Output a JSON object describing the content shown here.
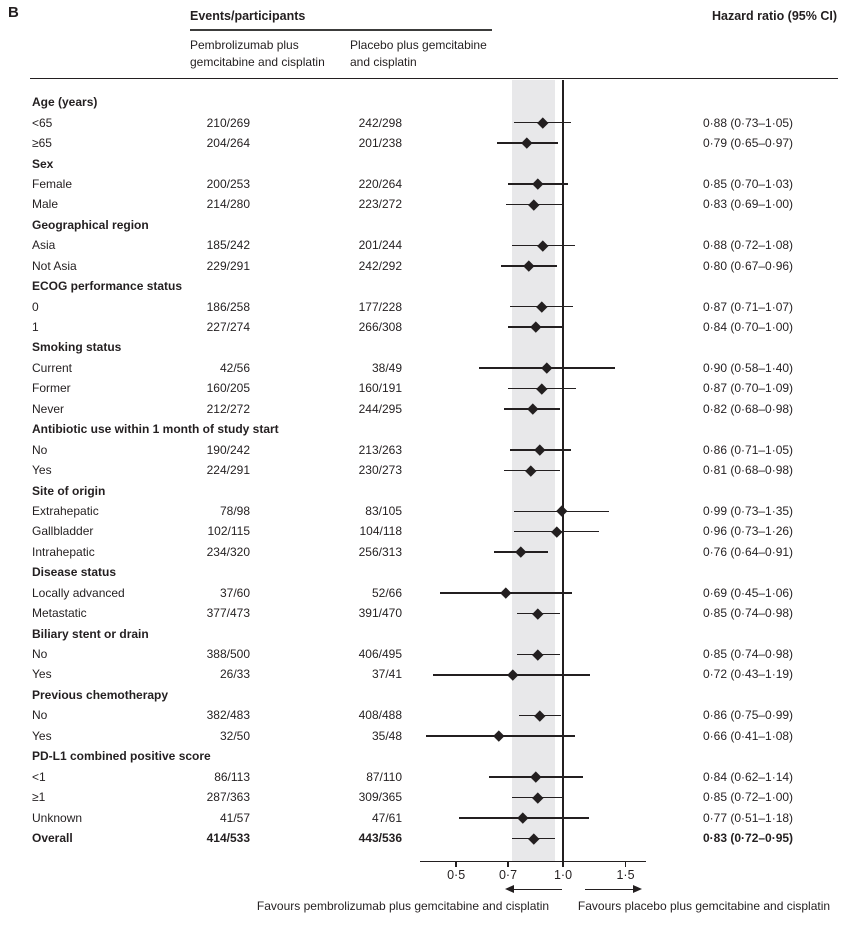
{
  "panel_label": "B",
  "header": {
    "events_title": "Events/participants",
    "arm1": "Pembrolizumab plus gemcitabine and cisplatin",
    "arm2": "Placebo plus gemcitabine and cisplatin",
    "hr_title": "Hazard ratio (95% CI)"
  },
  "colors": {
    "text": "#231f20",
    "shaded_band": "#e8e8ea",
    "marker": "#231f20"
  },
  "chart_data": {
    "type": "scatter",
    "subtype": "forest-plot",
    "x_scale": "log10",
    "x_tick_values": [
      0.5,
      0.7,
      1.0,
      1.5
    ],
    "x_tick_labels": [
      "0·5",
      "0·7",
      "1·0",
      "1·5"
    ],
    "reference_line": 1.0,
    "shaded_band": [
      0.72,
      0.95
    ],
    "xlabel_left": "Favours pembrolizumab plus gemcitabine and cisplatin",
    "xlabel_right": "Favours placebo plus gemcitabine and cisplatin",
    "rows": [
      {
        "type": "group",
        "label": "Age (years)"
      },
      {
        "type": "item",
        "label": "<65",
        "e1": "210/269",
        "e2": "242/298",
        "hr_text": "0·88 (0·73–1·05)",
        "hr": 0.88,
        "lo": 0.73,
        "hi": 1.05
      },
      {
        "type": "item",
        "label": "≥65",
        "e1": "204/264",
        "e2": "201/238",
        "hr_text": "0·79 (0·65–0·97)",
        "hr": 0.79,
        "lo": 0.65,
        "hi": 0.97
      },
      {
        "type": "group",
        "label": "Sex"
      },
      {
        "type": "item",
        "label": "Female",
        "e1": "200/253",
        "e2": "220/264",
        "hr_text": "0·85 (0·70–1·03)",
        "hr": 0.85,
        "lo": 0.7,
        "hi": 1.03
      },
      {
        "type": "item",
        "label": "Male",
        "e1": "214/280",
        "e2": "223/272",
        "hr_text": "0·83 (0·69–1·00)",
        "hr": 0.83,
        "lo": 0.69,
        "hi": 1.0
      },
      {
        "type": "group",
        "label": "Geographical region"
      },
      {
        "type": "item",
        "label": "Asia",
        "e1": "185/242",
        "e2": "201/244",
        "hr_text": "0·88 (0·72–1·08)",
        "hr": 0.88,
        "lo": 0.72,
        "hi": 1.08
      },
      {
        "type": "item",
        "label": "Not Asia",
        "e1": "229/291",
        "e2": "242/292",
        "hr_text": "0·80 (0·67–0·96)",
        "hr": 0.8,
        "lo": 0.67,
        "hi": 0.96
      },
      {
        "type": "group",
        "label": "ECOG performance status"
      },
      {
        "type": "item",
        "label": "0",
        "e1": "186/258",
        "e2": "177/228",
        "hr_text": "0·87 (0·71–1·07)",
        "hr": 0.87,
        "lo": 0.71,
        "hi": 1.07
      },
      {
        "type": "item",
        "label": "1",
        "e1": "227/274",
        "e2": "266/308",
        "hr_text": "0·84 (0·70–1·00)",
        "hr": 0.84,
        "lo": 0.7,
        "hi": 1.0
      },
      {
        "type": "group",
        "label": "Smoking status"
      },
      {
        "type": "item",
        "label": "Current",
        "e1": "42/56",
        "e2": "38/49",
        "hr_text": "0·90 (0·58–1·40)",
        "hr": 0.9,
        "lo": 0.58,
        "hi": 1.4
      },
      {
        "type": "item",
        "label": "Former",
        "e1": "160/205",
        "e2": "160/191",
        "hr_text": "0·87 (0·70–1·09)",
        "hr": 0.87,
        "lo": 0.7,
        "hi": 1.09
      },
      {
        "type": "item",
        "label": "Never",
        "e1": "212/272",
        "e2": "244/295",
        "hr_text": "0·82 (0·68–0·98)",
        "hr": 0.82,
        "lo": 0.68,
        "hi": 0.98
      },
      {
        "type": "group",
        "label": "Antibiotic use within 1 month of study start"
      },
      {
        "type": "item",
        "label": "No",
        "e1": "190/242",
        "e2": "213/263",
        "hr_text": "0·86 (0·71–1·05)",
        "hr": 0.86,
        "lo": 0.71,
        "hi": 1.05
      },
      {
        "type": "item",
        "label": "Yes",
        "e1": "224/291",
        "e2": "230/273",
        "hr_text": "0·81 (0·68–0·98)",
        "hr": 0.81,
        "lo": 0.68,
        "hi": 0.98
      },
      {
        "type": "group",
        "label": "Site of origin"
      },
      {
        "type": "item",
        "label": "Extrahepatic",
        "e1": "78/98",
        "e2": "83/105",
        "hr_text": "0·99 (0·73–1·35)",
        "hr": 0.99,
        "lo": 0.73,
        "hi": 1.35
      },
      {
        "type": "item",
        "label": "Gallbladder",
        "e1": "102/115",
        "e2": "104/118",
        "hr_text": "0·96 (0·73–1·26)",
        "hr": 0.96,
        "lo": 0.73,
        "hi": 1.26
      },
      {
        "type": "item",
        "label": "Intrahepatic",
        "e1": "234/320",
        "e2": "256/313",
        "hr_text": "0·76 (0·64–0·91)",
        "hr": 0.76,
        "lo": 0.64,
        "hi": 0.91
      },
      {
        "type": "group",
        "label": "Disease status"
      },
      {
        "type": "item",
        "label": "Locally advanced",
        "e1": "37/60",
        "e2": "52/66",
        "hr_text": "0·69 (0·45–1·06)",
        "hr": 0.69,
        "lo": 0.45,
        "hi": 1.06
      },
      {
        "type": "item",
        "label": "Metastatic",
        "e1": "377/473",
        "e2": "391/470",
        "hr_text": "0·85 (0·74–0·98)",
        "hr": 0.85,
        "lo": 0.74,
        "hi": 0.98
      },
      {
        "type": "group",
        "label": "Biliary stent or drain"
      },
      {
        "type": "item",
        "label": "No",
        "e1": "388/500",
        "e2": "406/495",
        "hr_text": "0·85 (0·74–0·98)",
        "hr": 0.85,
        "lo": 0.74,
        "hi": 0.98
      },
      {
        "type": "item",
        "label": "Yes",
        "e1": "26/33",
        "e2": "37/41",
        "hr_text": "0·72 (0·43–1·19)",
        "hr": 0.72,
        "lo": 0.43,
        "hi": 1.19
      },
      {
        "type": "group",
        "label": "Previous chemotherapy"
      },
      {
        "type": "item",
        "label": "No",
        "e1": "382/483",
        "e2": "408/488",
        "hr_text": "0·86 (0·75–0·99)",
        "hr": 0.86,
        "lo": 0.75,
        "hi": 0.99
      },
      {
        "type": "item",
        "label": "Yes",
        "e1": "32/50",
        "e2": "35/48",
        "hr_text": "0·66 (0·41–1·08)",
        "hr": 0.66,
        "lo": 0.41,
        "hi": 1.08
      },
      {
        "type": "group",
        "label": "PD-L1 combined positive score"
      },
      {
        "type": "item",
        "label": "<1",
        "e1": "86/113",
        "e2": "87/110",
        "hr_text": "0·84 (0·62–1·14)",
        "hr": 0.84,
        "lo": 0.62,
        "hi": 1.14
      },
      {
        "type": "item",
        "label": "≥1",
        "e1": "287/363",
        "e2": "309/365",
        "hr_text": "0·85 (0·72–1·00)",
        "hr": 0.85,
        "lo": 0.72,
        "hi": 1.0
      },
      {
        "type": "item",
        "label": "Unknown",
        "e1": "41/57",
        "e2": "47/61",
        "hr_text": "0·77 (0·51–1·18)",
        "hr": 0.77,
        "lo": 0.51,
        "hi": 1.18
      },
      {
        "type": "overall",
        "label": "Overall",
        "e1": "414/533",
        "e2": "443/536",
        "hr_text": "0·83 (0·72–0·95)",
        "hr": 0.83,
        "lo": 0.72,
        "hi": 0.95
      }
    ]
  }
}
